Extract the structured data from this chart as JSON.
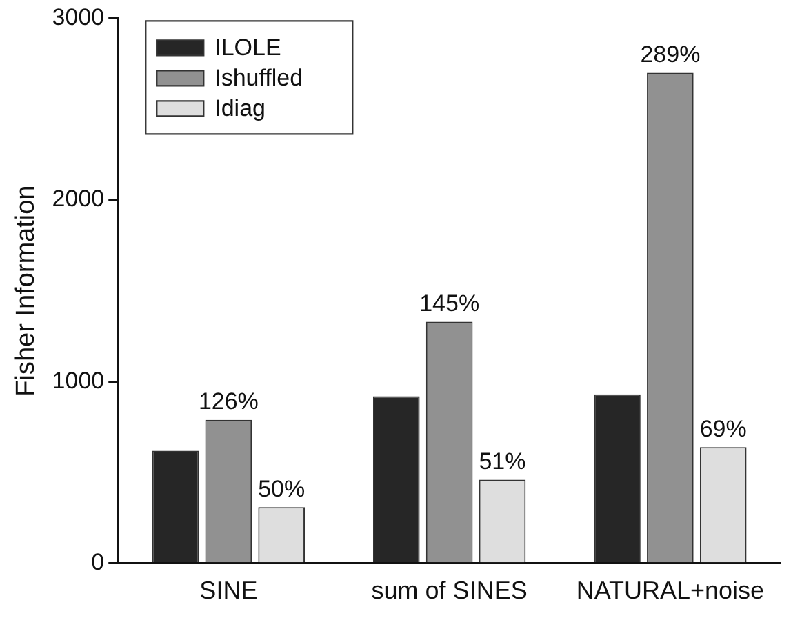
{
  "chart_data": {
    "type": "bar",
    "ylabel": "Fisher Information",
    "categories": [
      "SINE",
      "sum of SINES",
      "NATURAL+noise"
    ],
    "series": [
      {
        "name": "ILOLE",
        "color": "#262626",
        "values": [
          620,
          920,
          930
        ]
      },
      {
        "name": "Ishuffled",
        "color": "#919191",
        "values": [
          790,
          1330,
          2700
        ]
      },
      {
        "name": "Idiag",
        "color": "#dedede",
        "values": [
          310,
          460,
          640
        ]
      }
    ],
    "annotations": [
      {
        "text": "126%",
        "x": "SINE",
        "y": 790
      },
      {
        "text": "145%",
        "x": "sum of SINES",
        "y": 1330
      },
      {
        "text": "289%",
        "x": "NATURAL+noise",
        "y": 2700
      },
      "50%",
      "51%",
      "69%"
    ],
    "ylim": [
      0,
      3000
    ],
    "yticks": [
      0,
      1000,
      2000,
      3000
    ],
    "grid": false,
    "legend": "top left"
  }
}
